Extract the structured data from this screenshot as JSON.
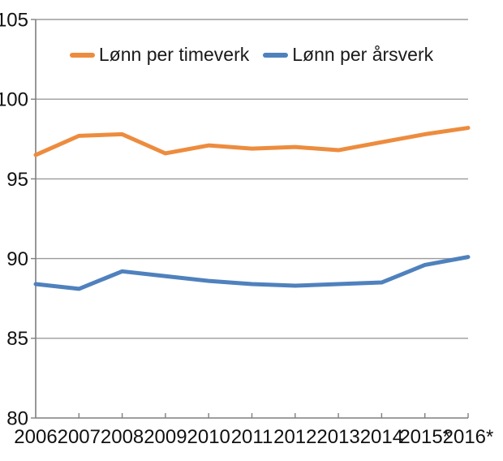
{
  "legend": {
    "position": "top-center"
  },
  "chart_data": {
    "type": "line",
    "title": "",
    "xlabel": "",
    "ylabel": "",
    "categories": [
      "2006",
      "2007",
      "2008",
      "2009",
      "2010",
      "2011",
      "2012",
      "2013",
      "2014",
      "2015*",
      "2016*"
    ],
    "series": [
      {
        "name": "Lønn per timeverk",
        "color": "#ED8C3E",
        "values": [
          96.5,
          97.7,
          97.8,
          96.6,
          97.1,
          96.9,
          97.0,
          96.8,
          97.3,
          97.8,
          98.2
        ]
      },
      {
        "name": "Lønn per årsverk",
        "color": "#4F81BD",
        "values": [
          88.4,
          88.1,
          89.2,
          88.9,
          88.6,
          88.4,
          88.3,
          88.4,
          88.5,
          89.6,
          90.1
        ]
      }
    ],
    "ylim": [
      80,
      105
    ],
    "yticks": [
      80,
      85,
      90,
      95,
      100,
      105
    ],
    "grid": true,
    "legend_position": "top-center",
    "line_width": 5,
    "grid_color": "#9B9B9B",
    "axis_color": "#7F7F7F",
    "text_color": "#111111",
    "background_color": "#FFFFFF"
  }
}
